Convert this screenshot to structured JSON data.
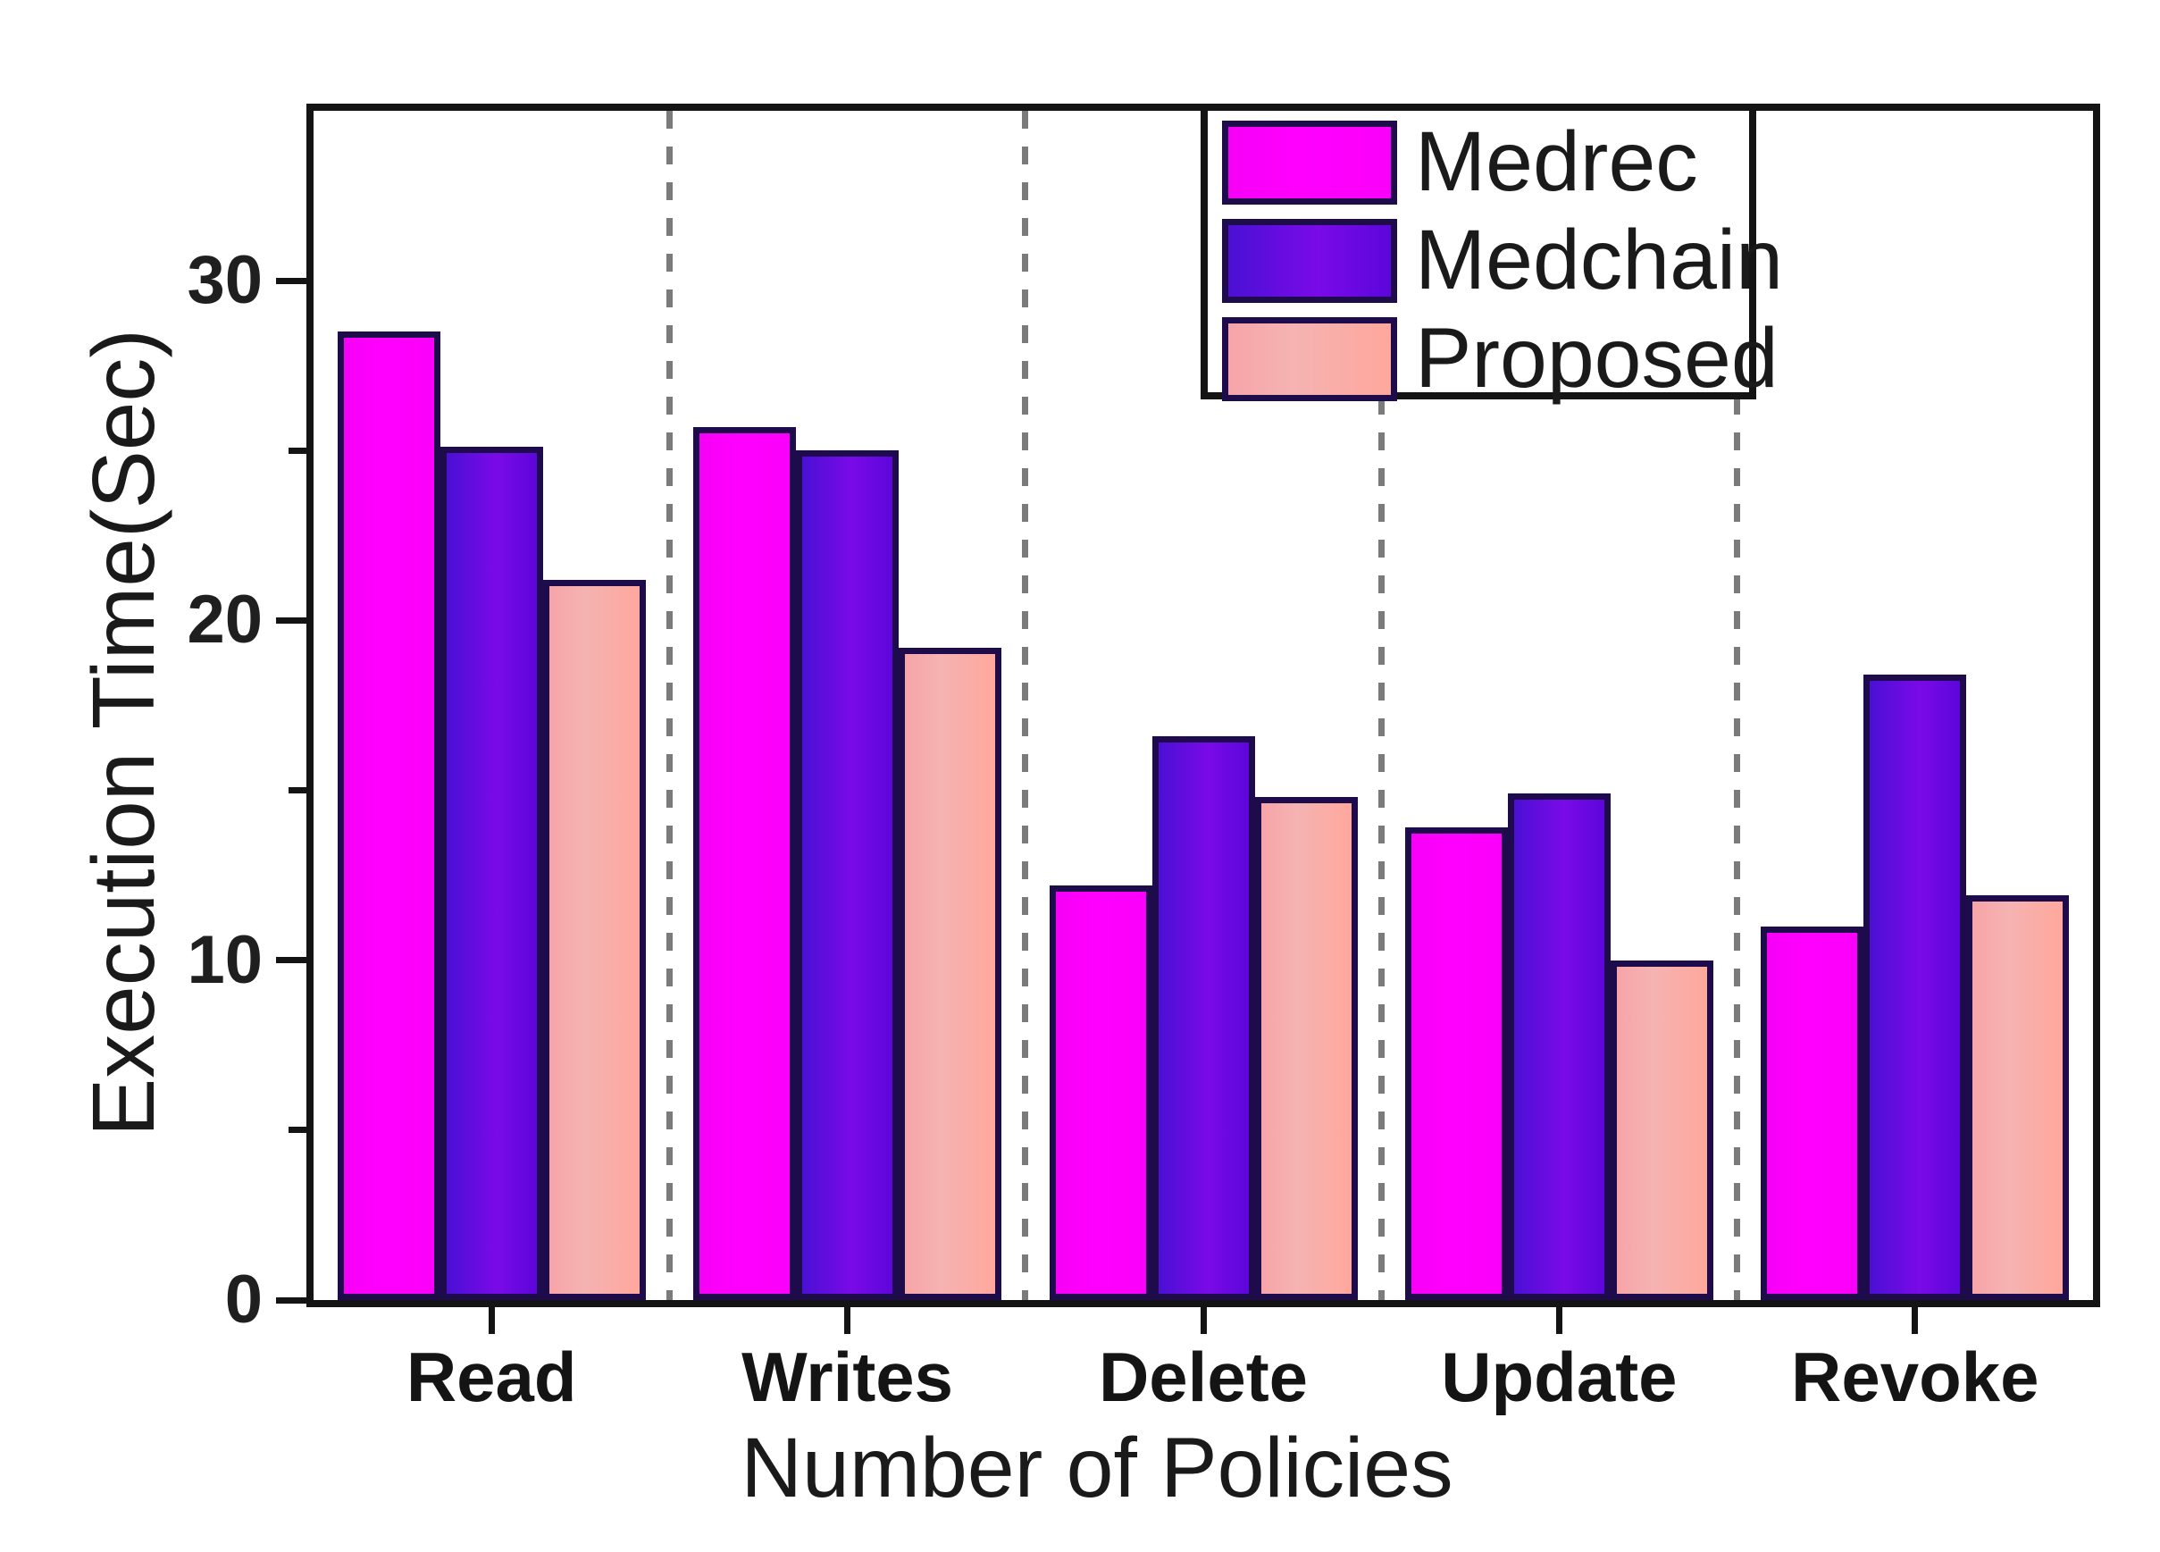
{
  "figure_title": "",
  "axes": {
    "y_title": "Execution Time(Sec)",
    "x_title": "Number of Policies",
    "y_major_ticks": [
      0,
      10,
      20,
      30
    ],
    "y_minor_ticks": [
      5,
      15,
      25
    ],
    "y_max": 35
  },
  "legend": {
    "position": "top-right",
    "entries": [
      "Medrec",
      "Medchain",
      "Proposed"
    ]
  },
  "colors": {
    "medrec_fill": "#FF00FF",
    "medchain_fill": "#5A0ADF",
    "proposed_fill": "#F7ABA8",
    "bar_border": "#1E0B4B",
    "frame": "#141414",
    "separator_dash": "#7B7B7B",
    "text": "#1A1A1A"
  },
  "chart_data": {
    "type": "bar",
    "title": "",
    "categories": [
      "Read",
      "Writes",
      "Delete",
      "Update",
      "Revoke"
    ],
    "series": [
      {
        "name": "Medrec",
        "color": "#FF00FF",
        "values": [
          28.5,
          25.7,
          12.2,
          13.9,
          11.0
        ]
      },
      {
        "name": "Medchain",
        "color": "#5A0ADF",
        "values": [
          25.1,
          25.0,
          16.6,
          14.9,
          18.4
        ]
      },
      {
        "name": "Proposed",
        "color": "#F7ABA8",
        "values": [
          21.2,
          19.2,
          14.8,
          10.0,
          11.9
        ]
      }
    ],
    "xlabel": "Number of Policies",
    "ylabel": "Execution Time(Sec)",
    "ylim": [
      0,
      35
    ],
    "y_major_step": 10,
    "y_minor_step": 5,
    "grid": false,
    "legend_position": "top-right",
    "group_separators": "dashed-vertical"
  }
}
